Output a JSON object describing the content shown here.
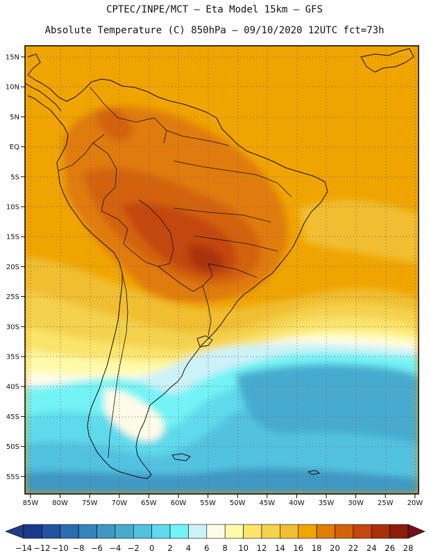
{
  "title": {
    "line1": "CPTEC/INPE/MCT –  Eta Model 15km – GFS",
    "line2": "Absolute Temperature (C) 850hPa – 09/10/2020 12UTC fct=73h"
  },
  "map": {
    "lat_labels": [
      "15N",
      "10N",
      "5N",
      "EQ",
      "5S",
      "10S",
      "15S",
      "20S",
      "25S",
      "30S",
      "35S",
      "40S",
      "45S",
      "50S",
      "55S"
    ],
    "lon_labels": [
      "85W",
      "80W",
      "75W",
      "70W",
      "65W",
      "60W",
      "55W",
      "50W",
      "45W",
      "40W",
      "35W",
      "30W",
      "25W",
      "20W"
    ],
    "background_color": "#f0a400",
    "grid": "dotted"
  },
  "colorbar": {
    "labels": [
      "-14",
      "-12",
      "-10",
      "-8",
      "-6",
      "-4",
      "-2",
      "0",
      "2",
      "4",
      "6",
      "8",
      "10",
      "12",
      "14",
      "16",
      "18",
      "20",
      "22",
      "24",
      "26",
      "28"
    ],
    "colors": [
      "#1c3a8c",
      "#2253a0",
      "#2a6caf",
      "#3583ba",
      "#3f98c4",
      "#47abd0",
      "#52c2e0",
      "#5edaec",
      "#73f3f5",
      "#ccf2f8",
      "#fffbe8",
      "#fffaa8",
      "#fbe46c",
      "#f4d24d",
      "#f1be33",
      "#f0a400",
      "#e07c07",
      "#d4620a",
      "#c4470b",
      "#aa3008",
      "#8a1e0a"
    ],
    "under_color": "#213a85",
    "over_color": "#75101a"
  }
}
